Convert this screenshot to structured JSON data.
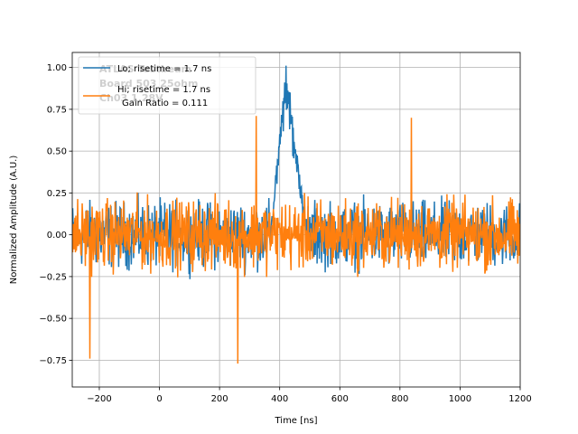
{
  "chart_data": {
    "type": "line",
    "xlabel": "Time [ns]",
    "ylabel": "Normalized Amplitude (A.U.)",
    "xlim": [
      -290,
      1200
    ],
    "ylim": [
      -0.91,
      1.09
    ],
    "xticks": [
      -200,
      0,
      200,
      400,
      600,
      800,
      1000,
      1200
    ],
    "xtick_labels": [
      "−200",
      "0",
      "200",
      "400",
      "600",
      "800",
      "1000",
      "1200"
    ],
    "yticks": [
      -0.75,
      -0.5,
      -0.25,
      0.0,
      0.25,
      0.5,
      0.75,
      1.0
    ],
    "ytick_labels": [
      "−0.75",
      "−0.50",
      "−0.25",
      "0.00",
      "0.25",
      "0.50",
      "0.75",
      "1.00"
    ],
    "grid": true,
    "legend_placement": "upper-left",
    "watermark": [
      "ATLAS Testbeam",
      "Board 503 25ohm",
      "Ch03 1.28V"
    ],
    "series": [
      {
        "name": "Lo; risetime = 1.7 ns",
        "color": "#1f77b4",
        "description": "noisy baseline with pulse peaking near 420 ns",
        "noise_amplitude": 0.28,
        "pulse": {
          "start": 370,
          "peak_time": 420,
          "end": 490,
          "peak": 1.0
        }
      },
      {
        "name": "Hi; risetime = 1.7 ns",
        "color": "#ff7f0e",
        "description": "noise only, overlays the Lo trace",
        "noise_amplitude": 0.3,
        "extremes": [
          {
            "x": -232,
            "y": -0.74
          },
          {
            "x": 261,
            "y": -0.77
          },
          {
            "x": 322,
            "y": 0.71
          },
          {
            "x": 838,
            "y": 0.7
          }
        ]
      }
    ],
    "annotation": "Gain Ratio = 0.111"
  }
}
